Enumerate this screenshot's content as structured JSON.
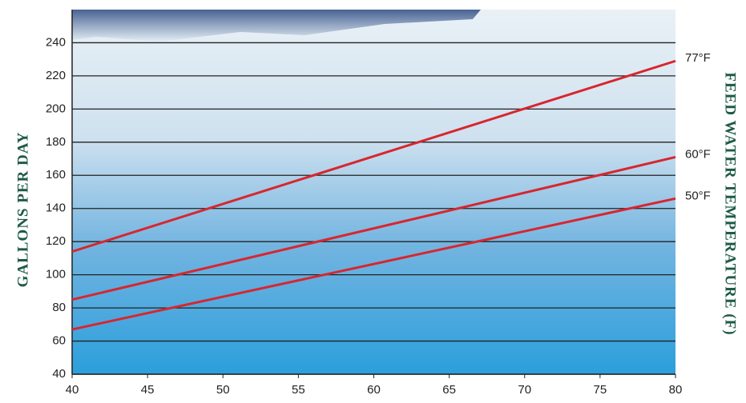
{
  "chart_data": {
    "type": "line",
    "y_label": "GALLONS PER DAY",
    "y2_label": "FEED WATER TEMPERATURE (F)",
    "x": [
      40,
      80
    ],
    "series": [
      {
        "name": "77°F",
        "color": "#d8262e",
        "values": [
          114,
          229
        ]
      },
      {
        "name": "60°F",
        "color": "#d8262e",
        "values": [
          85,
          171
        ]
      },
      {
        "name": "50°F",
        "color": "#d8262e",
        "values": [
          67,
          146
        ]
      }
    ],
    "xlim": [
      40,
      80
    ],
    "xticks": [
      40,
      45,
      50,
      55,
      60,
      65,
      70,
      75,
      80
    ],
    "ylim": [
      40,
      260
    ],
    "yticks": [
      40,
      60,
      80,
      100,
      120,
      140,
      160,
      180,
      200,
      220,
      240
    ],
    "grid": true
  }
}
